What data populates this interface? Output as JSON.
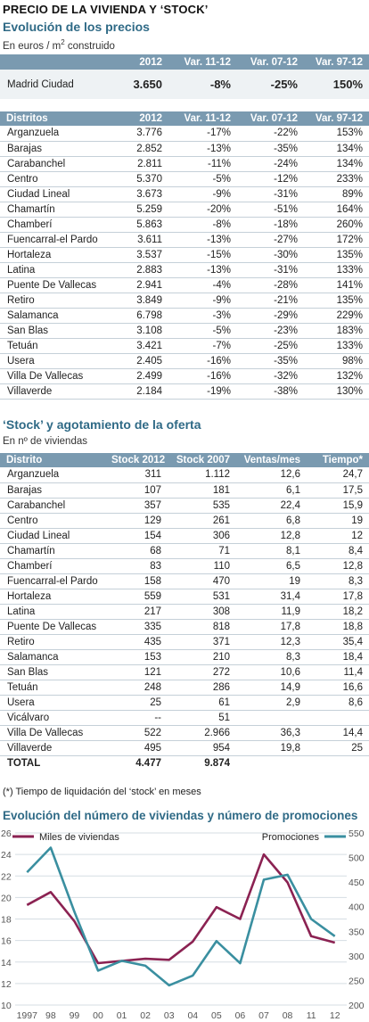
{
  "header": {
    "title": "PRECIO DE LA VIVIENDA Y ‘STOCK’",
    "section1_title": "Evolución de los precios",
    "section1_subtitle_pre": "En euros / m",
    "section1_subtitle_sup": "2",
    "section1_subtitle_post": " construido"
  },
  "madrid": {
    "columns": [
      "",
      "2012",
      "Var. 11-12",
      "Var. 07-12",
      "Var. 97-12"
    ],
    "row": [
      "Madrid Ciudad",
      "3.650",
      "-8%",
      "-25%",
      "150%"
    ]
  },
  "districts": {
    "columns": [
      "Distritos",
      "2012",
      "Var. 11-12",
      "Var. 07-12",
      "Var. 97-12"
    ],
    "rows": [
      [
        "Arganzuela",
        "3.776",
        "-17%",
        "-22%",
        "153%"
      ],
      [
        "Barajas",
        "2.852",
        "-13%",
        "-35%",
        "134%"
      ],
      [
        "Carabanchel",
        "2.811",
        "-11%",
        "-24%",
        "134%"
      ],
      [
        "Centro",
        "5.370",
        "-5%",
        "-12%",
        "233%"
      ],
      [
        "Ciudad Lineal",
        "3.673",
        "-9%",
        "-31%",
        "89%"
      ],
      [
        "Chamartín",
        "5.259",
        "-20%",
        "-51%",
        "164%"
      ],
      [
        "Chamberí",
        "5.863",
        "-8%",
        "-18%",
        "260%"
      ],
      [
        "Fuencarral-el Pardo",
        "3.611",
        "-13%",
        "-27%",
        "172%"
      ],
      [
        "Hortaleza",
        "3.537",
        "-15%",
        "-30%",
        "135%"
      ],
      [
        "Latina",
        "2.883",
        "-13%",
        "-31%",
        "133%"
      ],
      [
        "Puente De Vallecas",
        "2.941",
        "-4%",
        "-28%",
        "141%"
      ],
      [
        "Retiro",
        "3.849",
        "-9%",
        "-21%",
        "135%"
      ],
      [
        "Salamanca",
        "6.798",
        "-3%",
        "-29%",
        "229%"
      ],
      [
        "San Blas",
        "3.108",
        "-5%",
        "-23%",
        "183%"
      ],
      [
        "Tetuán",
        "3.421",
        "-7%",
        "-25%",
        "133%"
      ],
      [
        "Usera",
        "2.405",
        "-16%",
        "-35%",
        "98%"
      ],
      [
        "Villa De Vallecas",
        "2.499",
        "-16%",
        "-32%",
        "132%"
      ],
      [
        "Villaverde",
        "2.184",
        "-19%",
        "-38%",
        "130%"
      ]
    ]
  },
  "stock": {
    "title": "‘Stock’ y agotamiento de la oferta",
    "subtitle": "En nº de viviendas",
    "columns": [
      "Distrito",
      "Stock 2012",
      "Stock 2007",
      "Ventas/mes",
      "Tiempo*"
    ],
    "rows": [
      [
        "Arganzuela",
        "311",
        "1.112",
        "12,6",
        "24,7"
      ],
      [
        "Barajas",
        "107",
        "181",
        "6,1",
        "17,5"
      ],
      [
        "Carabanchel",
        "357",
        "535",
        "22,4",
        "15,9"
      ],
      [
        "Centro",
        "129",
        "261",
        "6,8",
        "19"
      ],
      [
        "Ciudad Lineal",
        "154",
        "306",
        "12,8",
        "12"
      ],
      [
        "Chamartín",
        "68",
        "71",
        "8,1",
        "8,4"
      ],
      [
        "Chamberí",
        "83",
        "110",
        "6,5",
        "12,8"
      ],
      [
        "Fuencarral-el Pardo",
        "158",
        "470",
        "19",
        "8,3"
      ],
      [
        "Hortaleza",
        "559",
        "531",
        "31,4",
        "17,8"
      ],
      [
        "Latina",
        "217",
        "308",
        "11,9",
        "18,2"
      ],
      [
        "Puente De Vallecas",
        "335",
        "818",
        "17,8",
        "18,8"
      ],
      [
        "Retiro",
        "435",
        "371",
        "12,3",
        "35,4"
      ],
      [
        "Salamanca",
        "153",
        "210",
        "8,3",
        "18,4"
      ],
      [
        "San Blas",
        "121",
        "272",
        "10,6",
        "11,4"
      ],
      [
        "Tetuán",
        "248",
        "286",
        "14,9",
        "16,6"
      ],
      [
        "Usera",
        "25",
        "61",
        "2,9",
        "8,6"
      ],
      [
        "Vicálvaro",
        "--",
        "51",
        "",
        ""
      ],
      [
        "Villa De Vallecas",
        "522",
        "2.966",
        "36,3",
        "14,4"
      ],
      [
        "Villaverde",
        "495",
        "954",
        "19,8",
        "25"
      ]
    ],
    "total": [
      "TOTAL",
      "4.477",
      "9.874",
      "",
      ""
    ],
    "footnote": "(*) Tiempo de liquidación del ‘stock’ en meses"
  },
  "chart_data": {
    "type": "line",
    "title": "Evolución del número de viviendas y número de promociones",
    "x": [
      "1997",
      "98",
      "99",
      "00",
      "01",
      "02",
      "03",
      "04",
      "05",
      "06",
      "07",
      "08",
      "11",
      "12"
    ],
    "series": [
      {
        "name": "Miles de viviendas",
        "axis": "left",
        "color": "#8b2252",
        "values": [
          19.3,
          20.5,
          17.8,
          13.9,
          14.1,
          14.3,
          14.2,
          15.9,
          19.1,
          18.0,
          24.0,
          21.4,
          16.4,
          15.8
        ]
      },
      {
        "name": "Promociones",
        "axis": "right",
        "color": "#3a8fa0",
        "values": [
          470,
          520,
          390,
          270,
          290,
          280,
          240,
          260,
          330,
          285,
          455,
          465,
          375,
          340
        ]
      }
    ],
    "left_axis": {
      "min": 10,
      "max": 26,
      "ticks": [
        "10",
        "12",
        "14",
        "16",
        "18",
        "20",
        "22",
        "24",
        "26"
      ]
    },
    "right_axis": {
      "min": 200,
      "max": 550,
      "ticks": [
        "200",
        "250",
        "300",
        "350",
        "400",
        "450",
        "500",
        "550"
      ]
    },
    "grid": true,
    "legend_placement": "top"
  }
}
